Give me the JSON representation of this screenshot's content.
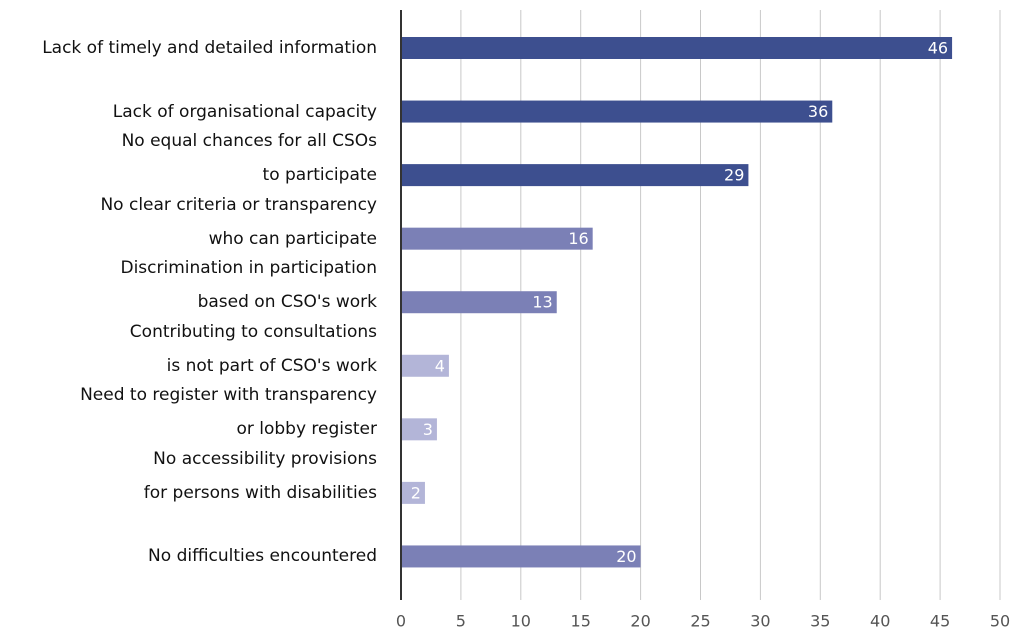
{
  "chart_data": {
    "type": "bar",
    "orientation": "horizontal",
    "categories": [
      "Lack of timely and detailed information",
      "Lack of organisational capacity",
      "No equal chances for all CSOs\nto participate",
      "No clear criteria or transparency\nwho can participate",
      "Discrimination in participation\nbased on CSO's work",
      "Contributing to consultations\nis not part of CSO's work",
      "Need to register with transparency\nor lobby register",
      "No accessibility provisions\nfor persons with disabilities",
      "No difficulties encountered"
    ],
    "values": [
      46,
      36,
      29,
      16,
      13,
      4,
      3,
      2,
      20
    ],
    "colors": [
      "#3d4f8f",
      "#3d4f8f",
      "#3d4f8f",
      "#7b80b6",
      "#7b80b6",
      "#b3b5d8",
      "#b3b5d8",
      "#b3b5d8",
      "#7b80b6"
    ],
    "xlim": [
      0,
      50
    ],
    "xticks": [
      0,
      5,
      10,
      15,
      20,
      25,
      30,
      35,
      40,
      45,
      50
    ],
    "grid": true
  }
}
